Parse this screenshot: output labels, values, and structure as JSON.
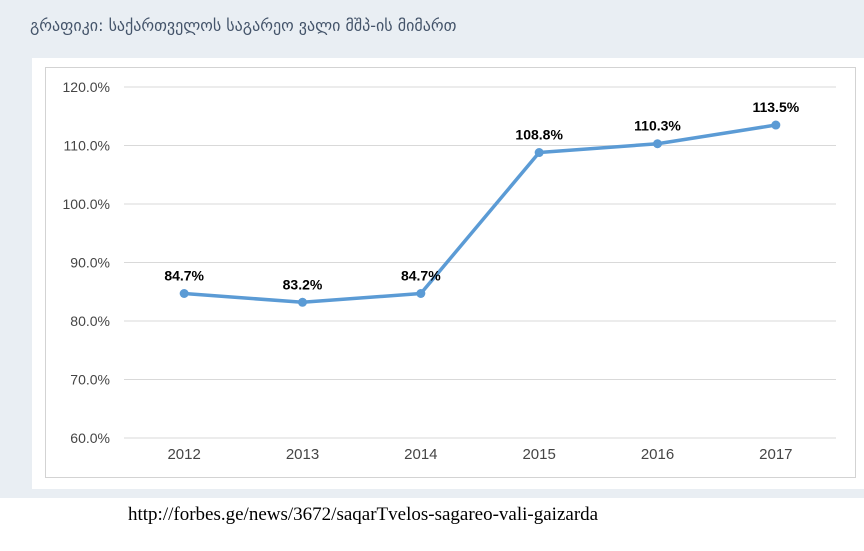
{
  "title": {
    "text": "გრაფიკი: საქართველოს საგარეო ვალი მშპ-ის მიმართ"
  },
  "caption": {
    "url": "http://forbes.ge/news/3672/saqarTvelos-sagareo-vali-gaizarda"
  },
  "colors": {
    "page_background": "#ffffff",
    "panel_background": "#e9eef3",
    "chart_background": "#ffffff",
    "chart_border": "#d3d3d3",
    "gridline": "#d9d9d9",
    "line": "#5b9bd5",
    "title_text": "#44546a",
    "tick_text": "#454545",
    "data_label_text": "#000000",
    "caption_text": "#000000"
  },
  "chart_data": {
    "type": "line",
    "title": "გრაფიკი: საქართველოს საგარეო ვალი მშპ-ის მიმართ",
    "categories": [
      "2012",
      "2013",
      "2014",
      "2015",
      "2016",
      "2017"
    ],
    "values": [
      84.7,
      83.2,
      84.7,
      108.8,
      110.3,
      113.5
    ],
    "data_labels": [
      "84.7%",
      "83.2%",
      "84.7%",
      "108.8%",
      "110.3%",
      "113.5%"
    ],
    "xlabel": "",
    "ylabel": "",
    "ylim": [
      60,
      120
    ],
    "ytick_interval": 10,
    "ytick_labels": [
      "120.0%",
      "110.0%",
      "100.0%",
      "90.0%",
      "80.0%",
      "70.0%",
      "60.0%"
    ],
    "grid": true,
    "legend": "none",
    "line_color": "#5b9bd5",
    "marker": "circle"
  }
}
